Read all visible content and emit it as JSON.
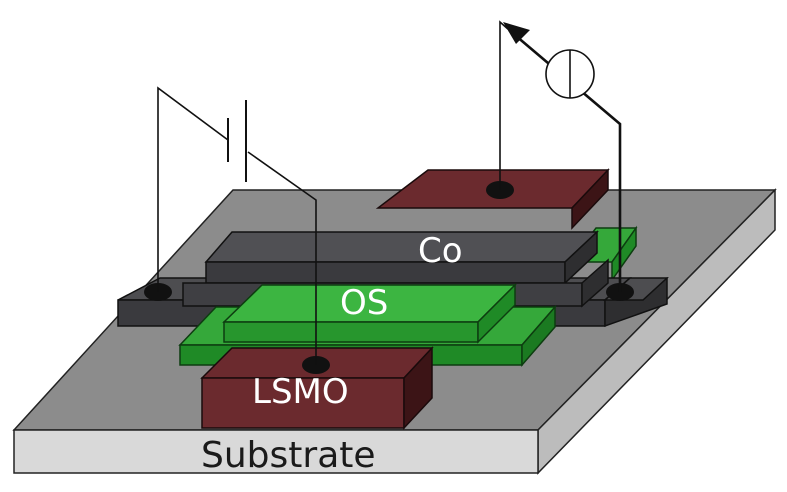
{
  "labels": {
    "co": "Co",
    "os": "OS",
    "lsmo": "LSMO",
    "substrate": "Substrate"
  },
  "colors": {
    "substrate_top": "#8c8c8c",
    "substrate_front": "#d9d9d9",
    "substrate_side": "#bcbcbc",
    "contact_pad": "#4d4d50",
    "contact_pad_dark": "#2e2e30",
    "co_top": "#505054",
    "co_front": "#3a3a3e",
    "os_top": "#35a83a",
    "os_front": "#1f8a26",
    "lsmo_top": "#6b2a2e",
    "lsmo_front": "#3c1416",
    "wire": "#111111"
  },
  "components": {
    "battery": "battery-symbol",
    "meter": "current-meter-symbol"
  }
}
